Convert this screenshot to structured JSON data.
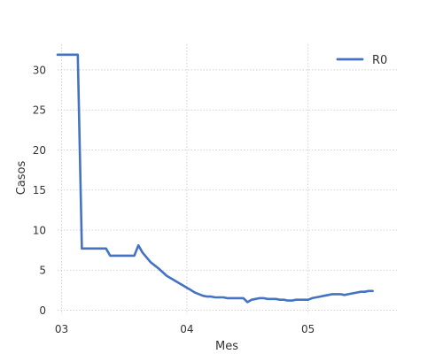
{
  "chart_data": {
    "type": "line",
    "xlabel": "Mes",
    "ylabel": "Casos",
    "x_ticks": [
      {
        "label": "03",
        "value": 0
      },
      {
        "label": "04",
        "value": 31
      },
      {
        "label": "05",
        "value": 61
      }
    ],
    "y_ticks": [
      0,
      5,
      10,
      15,
      20,
      25,
      30
    ],
    "xlim": [
      -1,
      83
    ],
    "ylim": [
      -0.5,
      33.2
    ],
    "grid": true,
    "legend": "top-right",
    "series": [
      {
        "name": "R0",
        "color": "#4472c4",
        "x": [
          -1,
          4,
          5,
          11,
          12,
          18,
          19,
          20,
          22,
          24,
          26,
          28,
          29,
          30,
          31,
          32,
          33,
          34,
          35,
          36,
          37,
          38,
          39,
          40,
          41,
          42,
          43,
          44,
          45,
          46,
          47,
          48,
          49,
          50,
          51,
          52,
          53,
          54,
          55,
          56,
          57,
          58,
          59,
          60,
          61,
          62,
          63,
          64,
          65,
          66,
          67,
          68,
          69,
          70,
          71,
          72,
          73,
          74,
          75,
          76,
          77
        ],
        "y": [
          31.9,
          31.9,
          7.7,
          7.7,
          6.8,
          6.8,
          8.1,
          7.2,
          6.0,
          5.2,
          4.3,
          3.7,
          3.4,
          3.1,
          2.8,
          2.5,
          2.2,
          2.0,
          1.8,
          1.7,
          1.7,
          1.6,
          1.6,
          1.6,
          1.5,
          1.5,
          1.5,
          1.5,
          1.5,
          1.0,
          1.3,
          1.4,
          1.5,
          1.5,
          1.4,
          1.4,
          1.4,
          1.3,
          1.3,
          1.2,
          1.2,
          1.3,
          1.3,
          1.3,
          1.3,
          1.5,
          1.6,
          1.7,
          1.8,
          1.9,
          2.0,
          2.0,
          2.0,
          1.9,
          2.0,
          2.1,
          2.2,
          2.3,
          2.3,
          2.4,
          2.4
        ]
      }
    ]
  }
}
